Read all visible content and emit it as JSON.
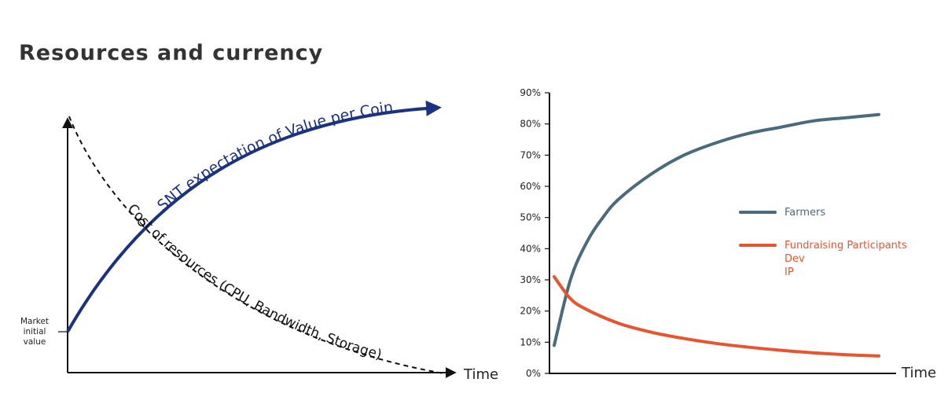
{
  "title": "Resources and currency",
  "colors": {
    "navy": "#1a3380",
    "slate": "#4a6a7d",
    "orange": "#e8542e",
    "black": "#111111"
  },
  "chart_data": [
    {
      "type": "line",
      "title": "",
      "xlabel": "Time",
      "ylabel": "",
      "y_annotation": "Market initial value",
      "series": [
        {
          "name": "SNT expectation of Value per Coin",
          "style": "solid",
          "color": "#1a3380"
        },
        {
          "name": "Cost of resources (CPU, Bandwidth, Storage)",
          "style": "dashed",
          "color": "#111111"
        }
      ]
    },
    {
      "type": "line",
      "title": "",
      "xlabel": "Time",
      "ylabel": "",
      "ylim": [
        0,
        90
      ],
      "yticks": [
        "0%",
        "10%",
        "20%",
        "30%",
        "40%",
        "50%",
        "60%",
        "70%",
        "80%",
        "90%"
      ],
      "xlim": [
        0,
        1
      ],
      "legend_position": "right",
      "series": [
        {
          "name": "Farmers",
          "color": "#4a6a7d",
          "x": [
            0,
            0.05,
            0.1,
            0.15,
            0.2,
            0.3,
            0.4,
            0.5,
            0.6,
            0.7,
            0.8,
            0.9,
            1.0
          ],
          "y": [
            9,
            30,
            42,
            50,
            56,
            64,
            70,
            74,
            77,
            79,
            81,
            82,
            83
          ]
        },
        {
          "name": "Fundraising Participants\nDev\nIP",
          "color": "#e8542e",
          "label_lines": [
            "Fundraising Participants",
            "Dev",
            "IP"
          ],
          "x": [
            0,
            0.05,
            0.1,
            0.2,
            0.3,
            0.4,
            0.5,
            0.6,
            0.7,
            0.8,
            0.9,
            1.0
          ],
          "y": [
            31,
            24,
            20.5,
            16,
            13.2,
            11.2,
            9.6,
            8.4,
            7.4,
            6.6,
            6,
            5.6
          ]
        }
      ]
    }
  ]
}
